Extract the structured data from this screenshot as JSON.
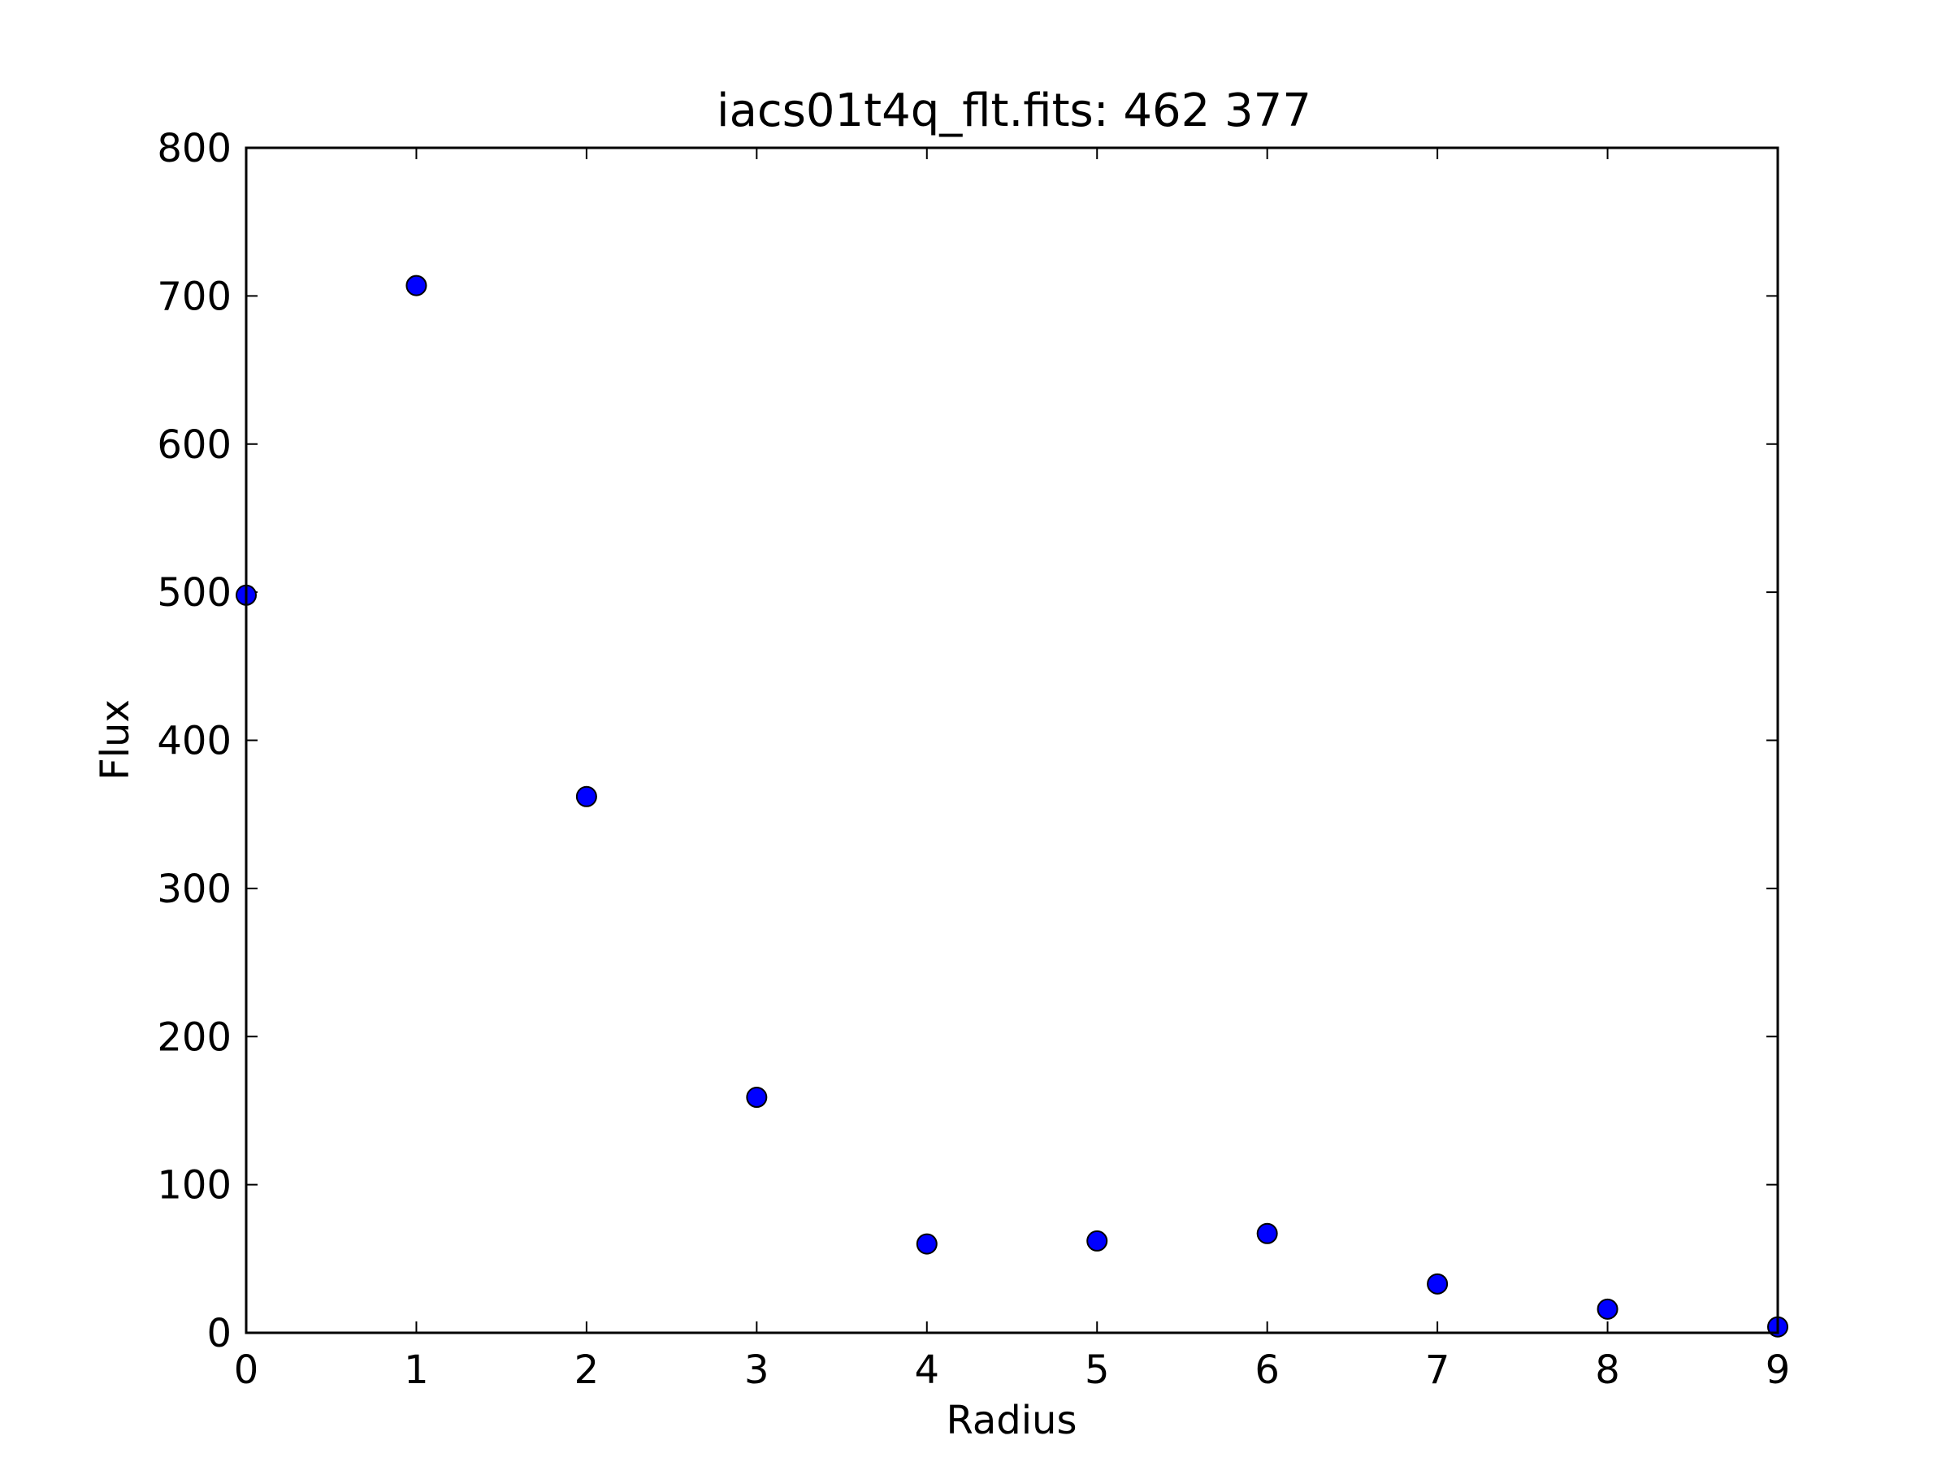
{
  "chart_data": {
    "type": "scatter",
    "title": "iacs01t4q_flt.fits: 462 377",
    "xlabel": "Radius",
    "ylabel": "Flux",
    "xlim": [
      0,
      9
    ],
    "ylim": [
      0,
      800
    ],
    "xticks": [
      0,
      1,
      2,
      3,
      4,
      5,
      6,
      7,
      8,
      9
    ],
    "yticks": [
      0,
      100,
      200,
      300,
      400,
      500,
      600,
      700,
      800
    ],
    "grid": false,
    "legend": "none",
    "marker_color": "#0000ff",
    "marker_edge_color": "#000000",
    "x": [
      0,
      1,
      2,
      3,
      4,
      5,
      6,
      7,
      8,
      9
    ],
    "y": [
      498,
      707,
      362,
      159,
      60,
      62,
      67,
      33,
      16,
      4
    ]
  }
}
